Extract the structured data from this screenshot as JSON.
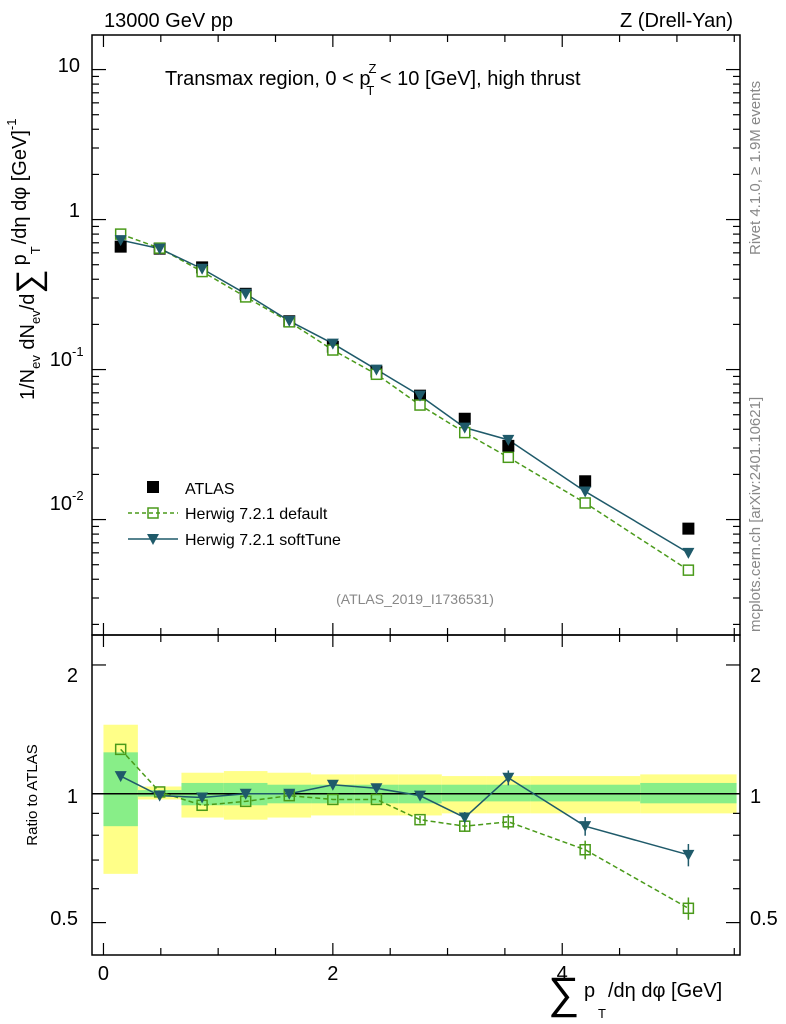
{
  "header": {
    "left": "13000 GeV pp",
    "right": "Z (Drell-Yan)"
  },
  "side": {
    "rivet": "Rivet 4.1.0, ≥ 1.9M events",
    "mcplots": "mcplots.cern.ch [arXiv:2401.10621]"
  },
  "main": {
    "title_pre": "Transmax region, 0 < p",
    "title_sup": "Z",
    "title_sub": "T",
    "title_post": " < 10 [GeV], high thrust",
    "ylabel_a": "1/N",
    "ylabel_ev": "ev",
    "ylabel_b": " dN",
    "ylabel_c": "/d",
    "ylabel_d": "p",
    "ylabel_e": "/dη dφ  [GeV]",
    "ylabel_exp": "-1",
    "yticks": [
      {
        "label": "10",
        "exp": "-2"
      },
      {
        "label": "10",
        "exp": "-1"
      },
      {
        "label": "1",
        "exp": ""
      },
      {
        "label": "10",
        "exp": ""
      }
    ],
    "watermark": "(ATLAS_2019_I1736531)"
  },
  "legend": {
    "atlas": "ATLAS",
    "default": "Herwig 7.2.1 default",
    "soft": "Herwig 7.2.1 softTune"
  },
  "ratio": {
    "ylabel": "Ratio to ATLAS",
    "yticks": [
      "0.5",
      "1",
      "2"
    ]
  },
  "xaxis": {
    "ticks": [
      "0",
      "2",
      "4"
    ],
    "label_a": "p",
    "label_sub": "T",
    "label_b": "/dη dφ [GeV]"
  },
  "colors": {
    "default": "#4a9a1a",
    "soft": "#1f5a6a",
    "band_outer": "#ffff88",
    "band_inner": "#88ee88"
  },
  "chart_data": {
    "type": "line",
    "x": [
      0.15,
      0.49,
      0.86,
      1.24,
      1.62,
      2.0,
      2.38,
      2.76,
      3.15,
      3.53,
      4.2,
      5.1
    ],
    "xlim": [
      -0.1,
      5.55
    ],
    "bins": [
      [
        0.0,
        0.3
      ],
      [
        0.3,
        0.68
      ],
      [
        0.68,
        1.05
      ],
      [
        1.05,
        1.43
      ],
      [
        1.43,
        1.81
      ],
      [
        1.81,
        2.19
      ],
      [
        2.19,
        2.57
      ],
      [
        2.57,
        2.95
      ],
      [
        2.95,
        3.34
      ],
      [
        3.34,
        3.72
      ],
      [
        3.72,
        4.68
      ],
      [
        4.68,
        5.52
      ]
    ],
    "main": {
      "yscale": "log",
      "ylim": [
        0.0017,
        17
      ],
      "series": [
        {
          "name": "ATLAS",
          "values": [
            0.66,
            0.64,
            0.48,
            0.32,
            0.21,
            0.142,
            0.097,
            0.067,
            0.047,
            0.031,
            0.018,
            0.0087
          ]
        },
        {
          "name": "Herwig 7.2.1 default",
          "values": [
            0.8,
            0.645,
            0.45,
            0.305,
            0.208,
            0.135,
            0.093,
            0.058,
            0.038,
            0.026,
            0.0129,
            0.0046
          ]
        },
        {
          "name": "Herwig 7.2.1 softTune",
          "values": [
            0.73,
            0.64,
            0.47,
            0.32,
            0.211,
            0.149,
            0.1,
            0.067,
            0.041,
            0.034,
            0.0154,
            0.006
          ]
        }
      ]
    },
    "ratio": {
      "yscale": "log",
      "ylim": [
        0.42,
        2.35
      ],
      "band_outer": [
        [
          0.65,
          1.45
        ],
        [
          0.97,
          1.04
        ],
        [
          0.88,
          1.12
        ],
        [
          0.87,
          1.13
        ],
        [
          0.88,
          1.12
        ],
        [
          0.89,
          1.11
        ],
        [
          0.89,
          1.11
        ],
        [
          0.89,
          1.11
        ],
        [
          0.9,
          1.1
        ],
        [
          0.9,
          1.1
        ],
        [
          0.9,
          1.1
        ],
        [
          0.9,
          1.11
        ]
      ],
      "band_inner": [
        [
          0.84,
          1.25
        ],
        [
          0.985,
          1.02
        ],
        [
          0.94,
          1.06
        ],
        [
          0.94,
          1.06
        ],
        [
          0.95,
          1.05
        ],
        [
          0.95,
          1.05
        ],
        [
          0.95,
          1.05
        ],
        [
          0.95,
          1.05
        ],
        [
          0.96,
          1.05
        ],
        [
          0.96,
          1.05
        ],
        [
          0.96,
          1.05
        ],
        [
          0.95,
          1.06
        ]
      ],
      "series": [
        {
          "name": "Herwig 7.2.1 default",
          "values": [
            1.27,
            1.01,
            0.94,
            0.96,
            0.99,
            0.97,
            0.97,
            0.87,
            0.84,
            0.86,
            0.74,
            0.54
          ]
        },
        {
          "name": "Herwig 7.2.1 softTune",
          "values": [
            1.1,
            0.99,
            0.98,
            1.0,
            1.0,
            1.05,
            1.03,
            0.99,
            0.88,
            1.09,
            0.84,
            0.72
          ]
        }
      ]
    }
  }
}
